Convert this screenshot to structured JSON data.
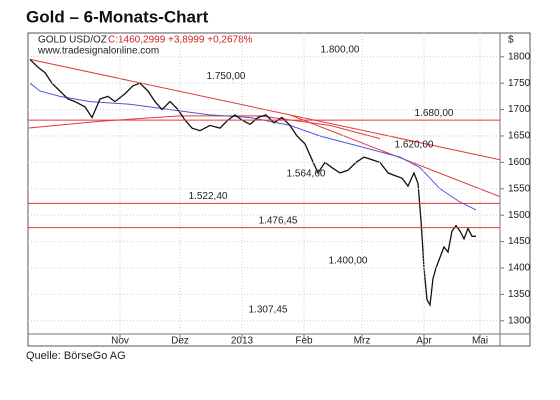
{
  "chart_data": {
    "type": "line",
    "title": "Gold – 6-Monats-Chart",
    "instrument": "GOLD USD/OZ",
    "quote": "C:1460,2999 +3,8999 +0,2678%",
    "website": "www.tradesignalonline.com",
    "y_unit": "$",
    "source": "Quelle: BörseGo AG",
    "xlim": [
      0,
      118
    ],
    "xticks": [
      {
        "value": 23,
        "label": "Nov"
      },
      {
        "value": 38,
        "label": "Dez"
      },
      {
        "value": 53.5,
        "label": "2013"
      },
      {
        "value": 69,
        "label": "Feb"
      },
      {
        "value": 83.5,
        "label": "Mrz"
      },
      {
        "value": 99,
        "label": "Apr"
      },
      {
        "value": 113,
        "label": "Mai"
      }
    ],
    "ylim": [
      1275,
      1845
    ],
    "yticks": [
      1300,
      1350,
      1400,
      1450,
      1500,
      1550,
      1600,
      1650,
      1700,
      1750,
      1800
    ],
    "grid": true,
    "series": [
      {
        "color": "#111111",
        "x": [
          0.5,
          2.5,
          4.25,
          6,
          8,
          10,
          11.75,
          14.25,
          16,
          18,
          20,
          21.75,
          24.25,
          26.25,
          28,
          30,
          31.75,
          33.5,
          35.5,
          37.5,
          39.25,
          41,
          43,
          45.5,
          48,
          50,
          51.75,
          53.5,
          55.5,
          57.5,
          59.5,
          61.5,
          63.5,
          65.5,
          67.25,
          69.25,
          71,
          72.5,
          74.25,
          76,
          78,
          80,
          82,
          84,
          86,
          88,
          90,
          91.75,
          93.5,
          95,
          96.5,
          97.5,
          98.25,
          99,
          99.75,
          100.5,
          101.25,
          102,
          103,
          104,
          105,
          106,
          107,
          108,
          109,
          110,
          111,
          112
        ],
        "values": [
          1795,
          1780,
          1770,
          1750,
          1735,
          1720,
          1715,
          1705,
          1685,
          1720,
          1725,
          1715,
          1730,
          1745,
          1750,
          1735,
          1715,
          1700,
          1715,
          1700,
          1680,
          1665,
          1660,
          1670,
          1665,
          1680,
          1690,
          1680,
          1672,
          1685,
          1690,
          1675,
          1685,
          1670,
          1650,
          1635,
          1605,
          1580,
          1600,
          1590,
          1580,
          1585,
          1600,
          1610,
          1605,
          1600,
          1580,
          1575,
          1570,
          1555,
          1580,
          1560,
          1490,
          1400,
          1340,
          1330,
          1380,
          1400,
          1420,
          1440,
          1430,
          1470,
          1480,
          1470,
          1455,
          1475,
          1460,
          1460
        ]
      },
      {
        "color": "#4a5ad8",
        "x": [
          0.5,
          3,
          8,
          15.5,
          25.5,
          35.5,
          45.5,
          55.5,
          65.5,
          73,
          83,
          93,
          98,
          103,
          108,
          112
        ],
        "values": [
          1750,
          1735,
          1725,
          1715,
          1710,
          1700,
          1690,
          1685,
          1670,
          1650,
          1630,
          1610,
          1590,
          1550,
          1525,
          1510
        ]
      },
      {
        "color": "#e03a3a",
        "x": [
          0,
          18,
          38,
          58,
          75.5,
          88
        ],
        "values": [
          1665,
          1678,
          1688,
          1688,
          1670,
          1645
        ]
      },
      {
        "color": "#e03a3a",
        "x": [
          0.5,
          118
        ],
        "values": [
          1795,
          1605
        ]
      },
      {
        "color": "#e03a3a",
        "x": [
          65.5,
          118
        ],
        "values": [
          1690,
          1535
        ]
      }
    ],
    "levels": [
      {
        "value": 1800,
        "label": "1.800,00",
        "x": 78,
        "line": false
      },
      {
        "value": 1750,
        "label": "1.750,00",
        "x": 49.5,
        "line": false
      },
      {
        "value": 1680,
        "label": "1.680,00",
        "x": 101.5,
        "line": true
      },
      {
        "value": 1620,
        "label": "1.620,00",
        "x": 96.5,
        "line": false
      },
      {
        "value": 1564.6,
        "label": "1.564,60",
        "x": 69.5,
        "line": false
      },
      {
        "value": 1522.4,
        "label": "1.522,40",
        "x": 45,
        "line": true
      },
      {
        "value": 1476.45,
        "label": "1.476,45",
        "x": 62.5,
        "line": true
      },
      {
        "value": 1400,
        "label": "1.400,00",
        "x": 80,
        "line": false
      },
      {
        "value": 1307.45,
        "label": "1.307,45",
        "x": 60,
        "line": false
      }
    ],
    "level_color": "#e03a3a"
  }
}
